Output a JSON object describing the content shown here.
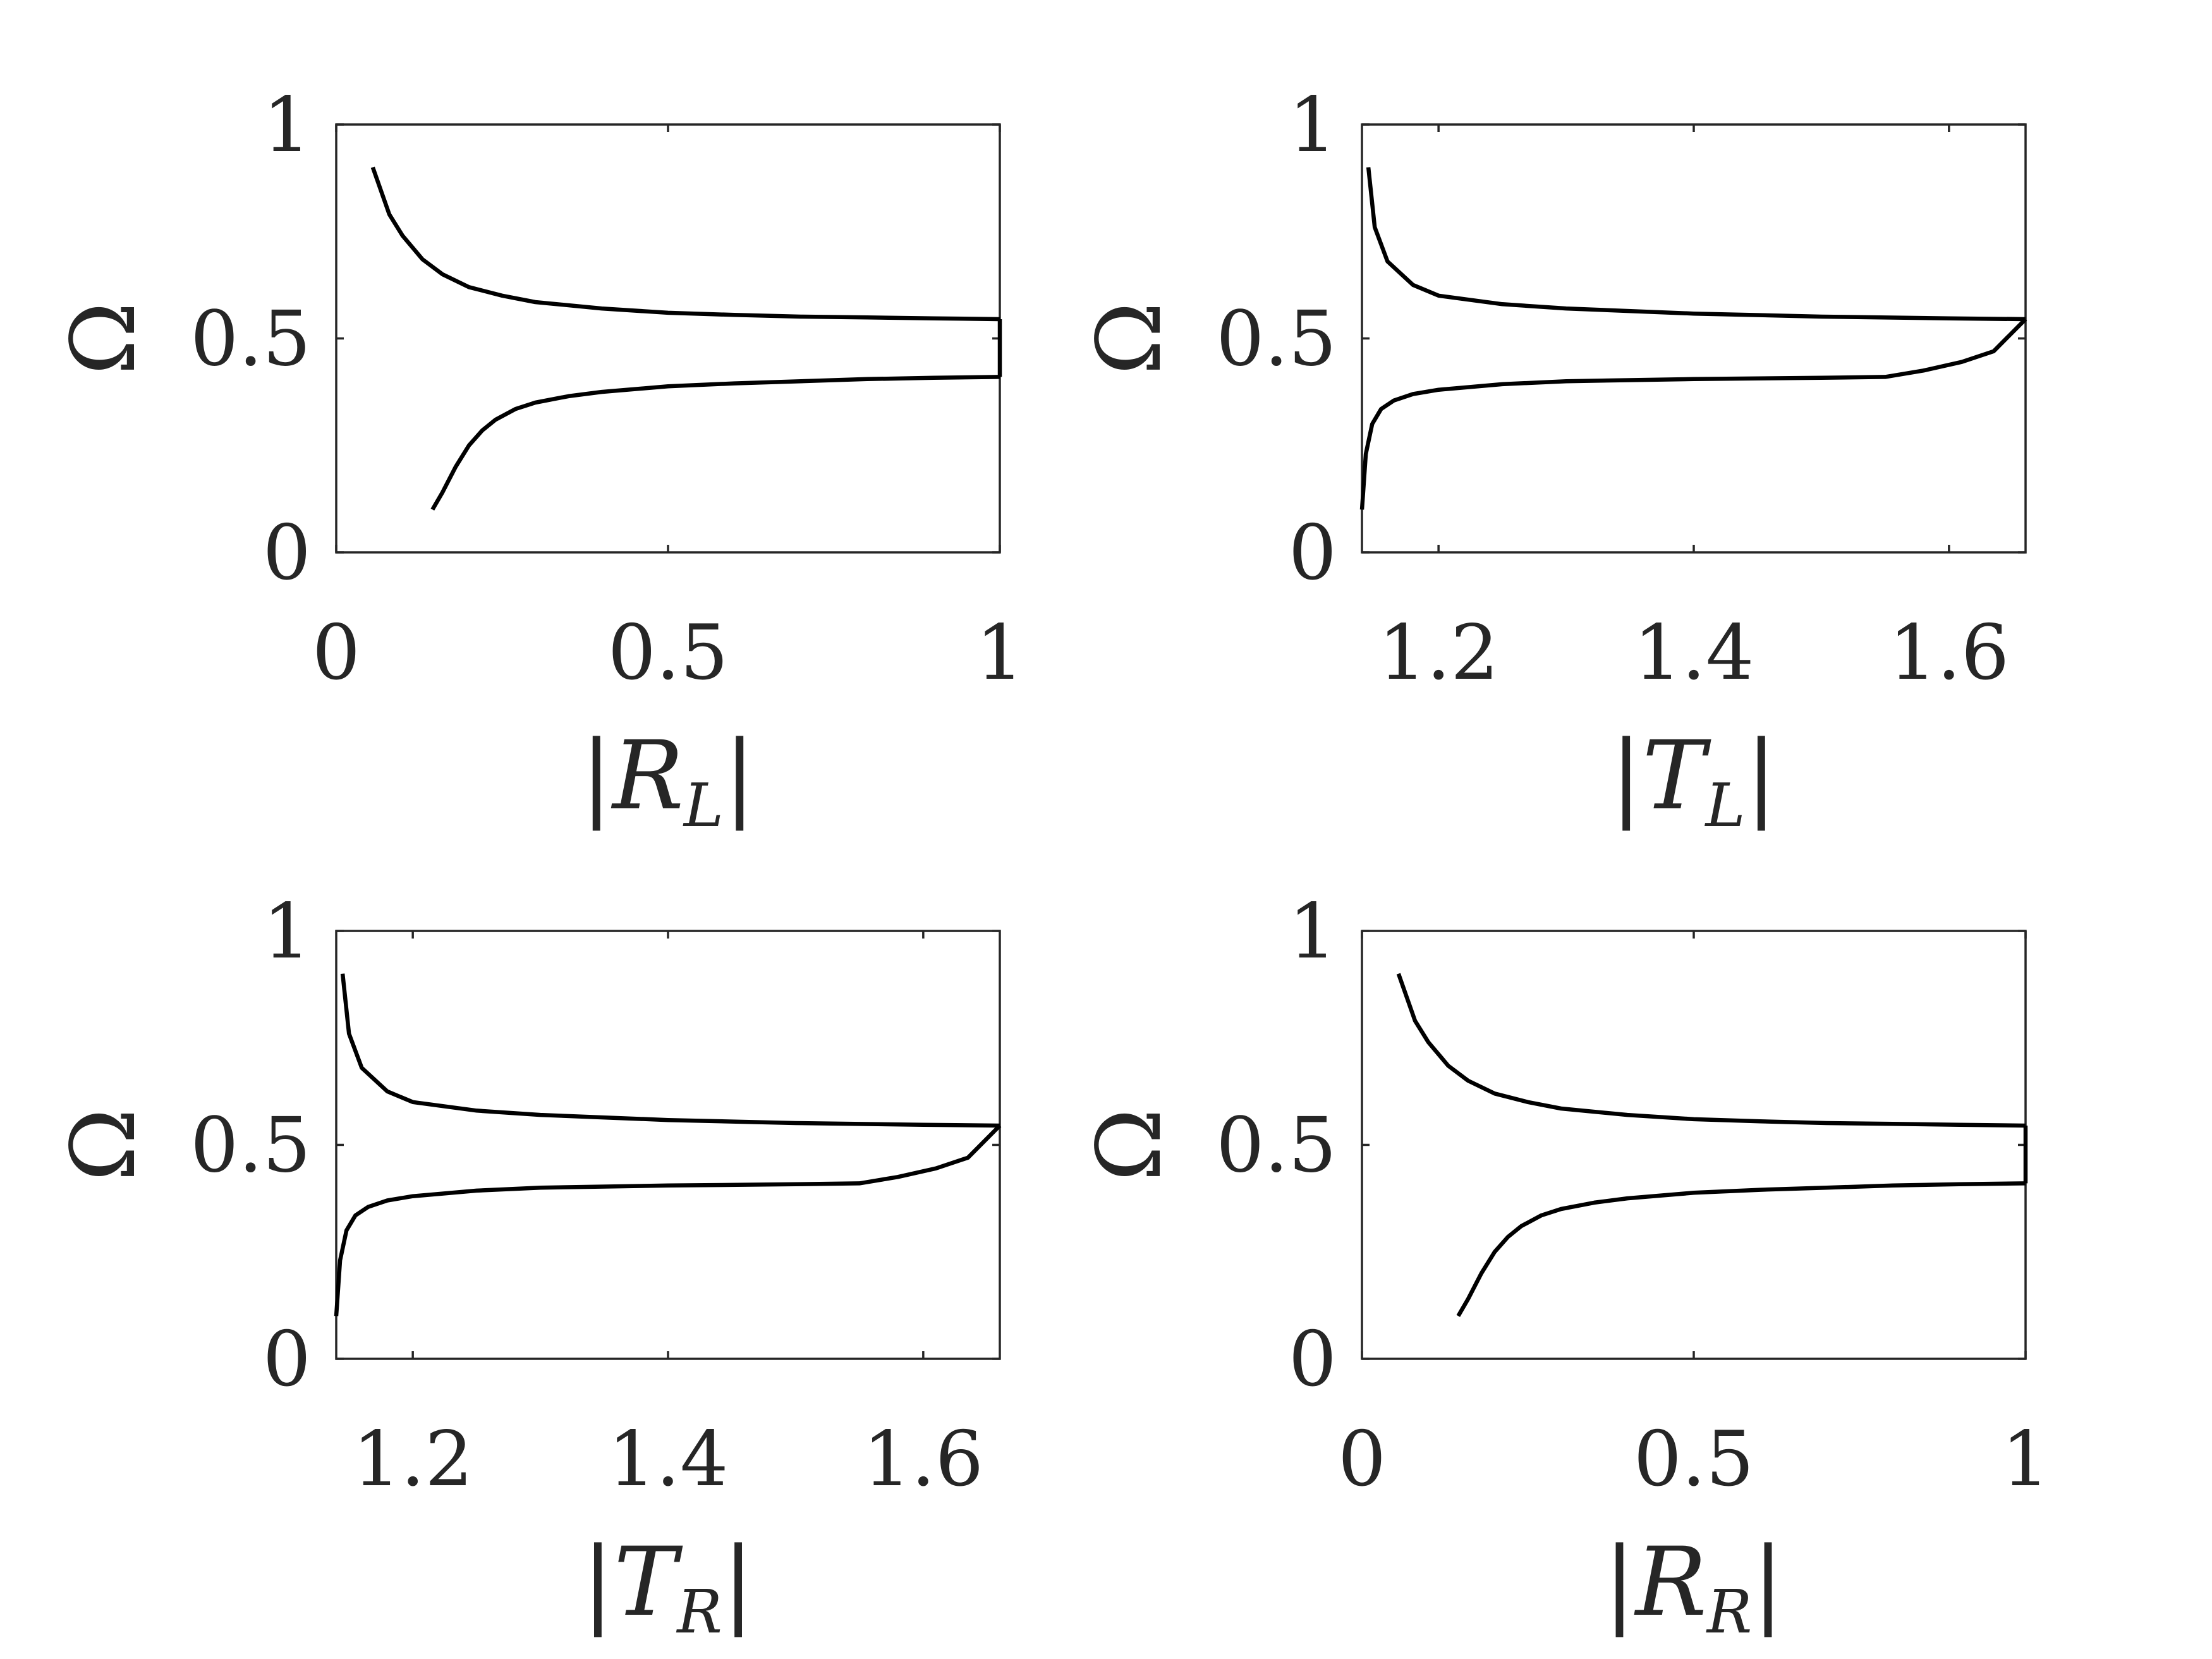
{
  "chart_data": [
    {
      "type": "line",
      "xlabel": "|R_L|",
      "xlabel_main": "R",
      "xlabel_sub": "L",
      "ylabel": "Ω",
      "xlim": [
        0,
        1
      ],
      "ylim": [
        0,
        1
      ],
      "xticks": [
        0,
        0.5,
        1
      ],
      "xtick_labels": [
        "0",
        "0.5",
        "1"
      ],
      "yticks": [
        0,
        0.5,
        1
      ],
      "ytick_labels": [
        "0",
        "0.5",
        "1"
      ],
      "grid": false,
      "series": [
        {
          "x": [
            0.055,
            0.08,
            0.1,
            0.13,
            0.16,
            0.2,
            0.25,
            0.3,
            0.4,
            0.5,
            0.6,
            0.7,
            0.8,
            0.9,
            1.0
          ],
          "y": [
            0.9,
            0.79,
            0.74,
            0.685,
            0.65,
            0.62,
            0.6,
            0.585,
            0.57,
            0.56,
            0.555,
            0.551,
            0.549,
            0.547,
            0.545
          ]
        },
        {
          "x": [
            1.0,
            1.0
          ],
          "y": [
            0.545,
            0.41
          ]
        },
        {
          "x": [
            1.0,
            0.9,
            0.8,
            0.7,
            0.6,
            0.5,
            0.4,
            0.35,
            0.3,
            0.27,
            0.24,
            0.22,
            0.2,
            0.18,
            0.16,
            0.145
          ],
          "y": [
            0.41,
            0.408,
            0.405,
            0.4,
            0.395,
            0.388,
            0.375,
            0.365,
            0.35,
            0.335,
            0.31,
            0.285,
            0.25,
            0.2,
            0.14,
            0.1
          ]
        }
      ]
    },
    {
      "type": "line",
      "xlabel": "|T_L|",
      "xlabel_main": "T",
      "xlabel_sub": "L",
      "ylabel": "Ω",
      "xlim": [
        1.14,
        1.66
      ],
      "ylim": [
        0,
        1
      ],
      "xticks": [
        1.2,
        1.4,
        1.6
      ],
      "xtick_labels": [
        "1.2",
        "1.4",
        "1.6"
      ],
      "yticks": [
        0,
        0.5,
        1
      ],
      "ytick_labels": [
        "0",
        "0.5",
        "1"
      ],
      "grid": false,
      "series": [
        {
          "x": [
            1.145,
            1.15,
            1.16,
            1.18,
            1.2,
            1.25,
            1.3,
            1.4,
            1.5,
            1.6,
            1.66
          ],
          "y": [
            0.9,
            0.76,
            0.68,
            0.625,
            0.6,
            0.58,
            0.57,
            0.558,
            0.551,
            0.547,
            0.545
          ]
        },
        {
          "x": [
            1.14,
            1.143,
            1.148,
            1.155,
            1.165,
            1.18,
            1.2,
            1.25,
            1.3,
            1.4,
            1.5,
            1.55,
            1.58,
            1.61,
            1.635,
            1.66
          ],
          "y": [
            0.1,
            0.23,
            0.3,
            0.335,
            0.355,
            0.37,
            0.38,
            0.393,
            0.4,
            0.405,
            0.408,
            0.41,
            0.425,
            0.445,
            0.47,
            0.545
          ]
        }
      ]
    },
    {
      "type": "line",
      "xlabel": "|T_R|",
      "xlabel_main": "T",
      "xlabel_sub": "R",
      "ylabel": "Ω",
      "xlim": [
        1.14,
        1.66
      ],
      "ylim": [
        0,
        1
      ],
      "xticks": [
        1.2,
        1.4,
        1.6
      ],
      "xtick_labels": [
        "1.2",
        "1.4",
        "1.6"
      ],
      "yticks": [
        0,
        0.5,
        1
      ],
      "ytick_labels": [
        "0",
        "0.5",
        "1"
      ],
      "grid": false,
      "series": [
        {
          "x": [
            1.145,
            1.15,
            1.16,
            1.18,
            1.2,
            1.25,
            1.3,
            1.4,
            1.5,
            1.6,
            1.66
          ],
          "y": [
            0.9,
            0.76,
            0.68,
            0.625,
            0.6,
            0.58,
            0.57,
            0.558,
            0.551,
            0.547,
            0.545
          ]
        },
        {
          "x": [
            1.14,
            1.143,
            1.148,
            1.155,
            1.165,
            1.18,
            1.2,
            1.25,
            1.3,
            1.4,
            1.5,
            1.55,
            1.58,
            1.61,
            1.635,
            1.66
          ],
          "y": [
            0.1,
            0.23,
            0.3,
            0.335,
            0.355,
            0.37,
            0.38,
            0.393,
            0.4,
            0.405,
            0.408,
            0.41,
            0.425,
            0.445,
            0.47,
            0.545
          ]
        }
      ]
    },
    {
      "type": "line",
      "xlabel": "|R_R|",
      "xlabel_main": "R",
      "xlabel_sub": "R",
      "ylabel": "Ω",
      "xlim": [
        0,
        1
      ],
      "ylim": [
        0,
        1
      ],
      "xticks": [
        0,
        0.5,
        1
      ],
      "xtick_labels": [
        "0",
        "0.5",
        "1"
      ],
      "yticks": [
        0,
        0.5,
        1
      ],
      "ytick_labels": [
        "0",
        "0.5",
        "1"
      ],
      "grid": false,
      "series": [
        {
          "x": [
            0.055,
            0.08,
            0.1,
            0.13,
            0.16,
            0.2,
            0.25,
            0.3,
            0.4,
            0.5,
            0.6,
            0.7,
            0.8,
            0.9,
            1.0
          ],
          "y": [
            0.9,
            0.79,
            0.74,
            0.685,
            0.65,
            0.62,
            0.6,
            0.585,
            0.57,
            0.56,
            0.555,
            0.551,
            0.549,
            0.547,
            0.545
          ]
        },
        {
          "x": [
            1.0,
            1.0
          ],
          "y": [
            0.545,
            0.41
          ]
        },
        {
          "x": [
            1.0,
            0.9,
            0.8,
            0.7,
            0.6,
            0.5,
            0.4,
            0.35,
            0.3,
            0.27,
            0.24,
            0.22,
            0.2,
            0.18,
            0.16,
            0.145
          ],
          "y": [
            0.41,
            0.408,
            0.405,
            0.4,
            0.395,
            0.388,
            0.375,
            0.365,
            0.35,
            0.335,
            0.31,
            0.285,
            0.25,
            0.2,
            0.14,
            0.1
          ]
        }
      ]
    }
  ]
}
